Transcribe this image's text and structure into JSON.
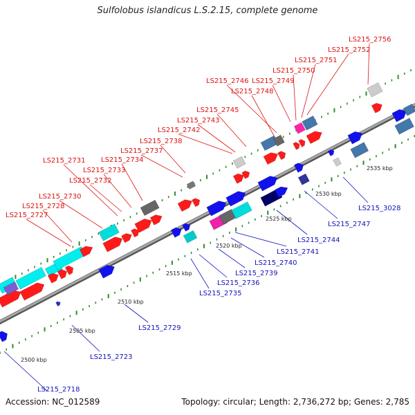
{
  "title": "Sulfolobus islandicus L.S.2.15, complete genome",
  "footer": {
    "accession": "Accession: NC_012589",
    "topology": "Topology: circular; Length: 2,736,272 bp; Genes: 2,785"
  },
  "colors": {
    "forward_label": "#dd1111",
    "reverse_label": "#1111bb",
    "backbone": "#8a8a8a",
    "tick": "#2e8b2e"
  },
  "scale_labels": [
    "2500 kbp",
    "2505 kbp",
    "2510 kbp",
    "2515 kbp",
    "2520 kbp",
    "2525 kbp",
    "2530 kbp",
    "2535 kbp"
  ],
  "forward_labels": [
    "LS215_2727",
    "LS215_2728",
    "LS215_2730",
    "LS215_2731",
    "LS215_2732",
    "LS215_2733",
    "LS215_2734",
    "LS215_2737",
    "LS215_2738",
    "LS215_2742",
    "LS215_2743",
    "LS215_2745",
    "LS215_2748",
    "LS215_2746",
    "LS215_2749",
    "LS215_2750",
    "LS215_2751",
    "LS215_2752",
    "LS215_2756"
  ],
  "reverse_labels": [
    "LS215_2718",
    "LS215_2723",
    "LS215_2729",
    "LS215_2735",
    "LS215_2736",
    "LS215_2739",
    "LS215_2740",
    "LS215_2741",
    "LS215_2744",
    "LS215_2747",
    "LS215_3028"
  ]
}
